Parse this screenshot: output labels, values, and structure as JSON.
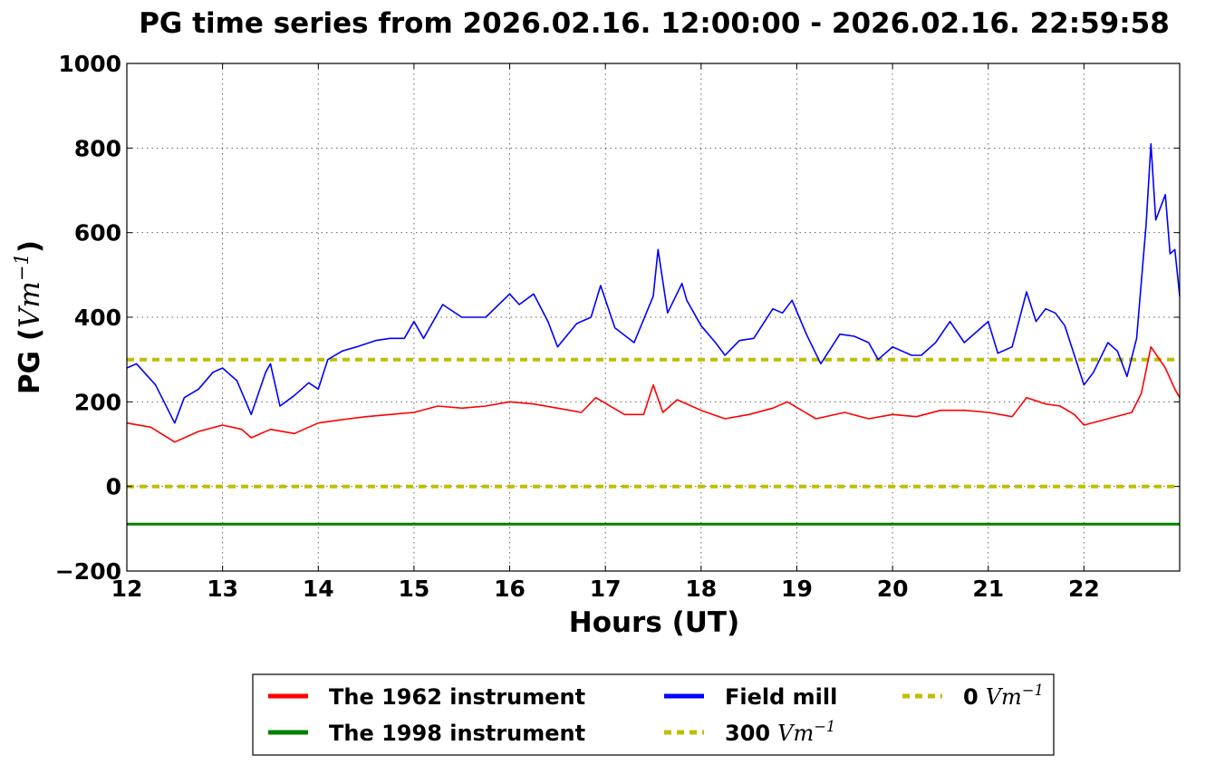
{
  "chart_data": {
    "type": "line",
    "title": "PG time series from 2026.02.16. 12:00:00 - 2026.02.16. 22:59:58",
    "xlabel": "Hours (UT)",
    "ylabel_prefix": "PG (",
    "ylabel_unit": "Vm",
    "ylabel_exp": "−1",
    "ylabel_suffix": ")",
    "xlim": [
      12,
      23
    ],
    "ylim": [
      -200,
      1000
    ],
    "xticks": [
      12,
      13,
      14,
      15,
      16,
      17,
      18,
      19,
      20,
      21,
      22
    ],
    "yticks": [
      -200,
      0,
      200,
      400,
      600,
      800,
      1000
    ],
    "ytick_labels": [
      "−200",
      "0",
      "200",
      "400",
      "600",
      "800",
      "1000"
    ],
    "grid": true,
    "legend_position": "below",
    "series": [
      {
        "name": "The 1962 instrument",
        "color": "#ff0000",
        "x": [
          12.0,
          12.25,
          12.5,
          12.75,
          13.0,
          13.2,
          13.3,
          13.5,
          13.75,
          14.0,
          14.25,
          14.5,
          14.75,
          15.0,
          15.25,
          15.5,
          15.75,
          16.0,
          16.25,
          16.5,
          16.75,
          16.9,
          17.2,
          17.4,
          17.5,
          17.6,
          17.75,
          18.0,
          18.25,
          18.5,
          18.75,
          18.9,
          19.2,
          19.5,
          19.75,
          20.0,
          20.25,
          20.5,
          20.75,
          21.0,
          21.25,
          21.4,
          21.6,
          21.75,
          21.9,
          22.0,
          22.25,
          22.5,
          22.6,
          22.7,
          22.85,
          22.95,
          23.0
        ],
        "y": [
          150,
          140,
          105,
          130,
          145,
          135,
          115,
          135,
          125,
          150,
          158,
          165,
          170,
          175,
          190,
          185,
          190,
          200,
          195,
          185,
          175,
          210,
          170,
          170,
          240,
          175,
          205,
          180,
          160,
          170,
          185,
          200,
          160,
          175,
          160,
          170,
          165,
          180,
          180,
          175,
          165,
          210,
          195,
          190,
          170,
          145,
          160,
          175,
          220,
          330,
          280,
          230,
          210
        ]
      },
      {
        "name": "The 1998 instrument",
        "color": "#008000",
        "x": [
          12.0,
          23.0
        ],
        "y": [
          -89,
          -89
        ]
      },
      {
        "name": "Field mill",
        "color": "#0000ff",
        "x": [
          12.0,
          12.1,
          12.3,
          12.5,
          12.6,
          12.75,
          12.9,
          13.0,
          13.15,
          13.3,
          13.45,
          13.5,
          13.6,
          13.75,
          13.9,
          14.0,
          14.1,
          14.25,
          14.4,
          14.6,
          14.75,
          14.9,
          15.0,
          15.1,
          15.3,
          15.5,
          15.75,
          16.0,
          16.1,
          16.25,
          16.4,
          16.5,
          16.7,
          16.85,
          16.95,
          17.1,
          17.3,
          17.5,
          17.55,
          17.65,
          17.8,
          17.85,
          18.0,
          18.15,
          18.25,
          18.4,
          18.55,
          18.75,
          18.85,
          18.95,
          19.1,
          19.25,
          19.45,
          19.6,
          19.75,
          19.85,
          20.0,
          20.2,
          20.3,
          20.45,
          20.6,
          20.75,
          20.9,
          21.0,
          21.1,
          21.25,
          21.4,
          21.5,
          21.6,
          21.7,
          21.8,
          21.9,
          22.0,
          22.1,
          22.25,
          22.35,
          22.45,
          22.55,
          22.65,
          22.7,
          22.75,
          22.85,
          22.9,
          22.95,
          23.0
        ],
        "y": [
          280,
          290,
          240,
          150,
          210,
          230,
          270,
          280,
          250,
          170,
          270,
          290,
          190,
          215,
          245,
          230,
          300,
          320,
          330,
          345,
          350,
          350,
          390,
          350,
          430,
          400,
          400,
          455,
          430,
          455,
          390,
          330,
          385,
          400,
          475,
          375,
          340,
          450,
          560,
          410,
          480,
          440,
          380,
          340,
          310,
          345,
          350,
          420,
          410,
          440,
          360,
          290,
          360,
          355,
          340,
          300,
          330,
          310,
          310,
          340,
          390,
          340,
          370,
          390,
          315,
          330,
          460,
          390,
          420,
          410,
          380,
          310,
          240,
          270,
          340,
          320,
          260,
          350,
          620,
          810,
          630,
          690,
          550,
          560,
          450
        ]
      },
      {
        "name": "300",
        "legend_unit": "Vm",
        "legend_exp": "−1",
        "color": "#bfbf00",
        "style": "dashed",
        "x": [
          12.0,
          23.0
        ],
        "y": [
          300,
          300
        ]
      },
      {
        "name": "0",
        "legend_unit": "Vm",
        "legend_exp": "−1",
        "color": "#bfbf00",
        "style": "dashed",
        "x": [
          12.0,
          23.0
        ],
        "y": [
          0,
          0
        ]
      }
    ]
  }
}
